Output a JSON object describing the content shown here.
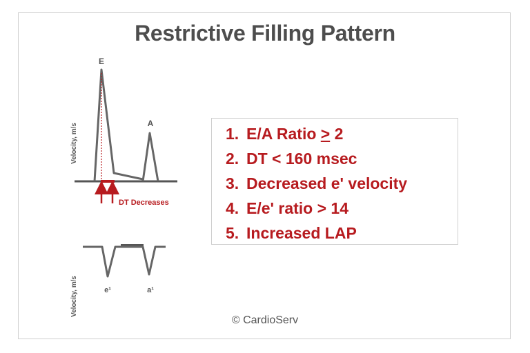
{
  "title": "Restrictive Filling Pattern",
  "mitral_inflow": {
    "peak_e_label": "E",
    "peak_a_label": "A",
    "y_axis_label": "Velocity, m/s",
    "dt_annotation": "DT Decreases"
  },
  "tissue_doppler": {
    "peak_e_prime_label": "e¹",
    "peak_a_prime_label": "a¹",
    "y_axis_label": "Velocity, m/s"
  },
  "criteria": [
    {
      "num": "1.",
      "pre": "E/A Ratio ",
      "underlined": ">",
      "post": " 2"
    },
    {
      "num": "2.",
      "pre": "DT < 160 msec",
      "underlined": "",
      "post": ""
    },
    {
      "num": "3.",
      "pre": "Decreased e' velocity",
      "underlined": "",
      "post": ""
    },
    {
      "num": "4.",
      "pre": "E/e' ratio > 14",
      "underlined": "",
      "post": ""
    },
    {
      "num": "5.",
      "pre": "Increased LAP",
      "underlined": "",
      "post": ""
    }
  ],
  "copyright": "© CardioServ",
  "colors": {
    "waveform": "#666666",
    "accent_red": "#b71b1f",
    "title": "#4d4d4d"
  }
}
